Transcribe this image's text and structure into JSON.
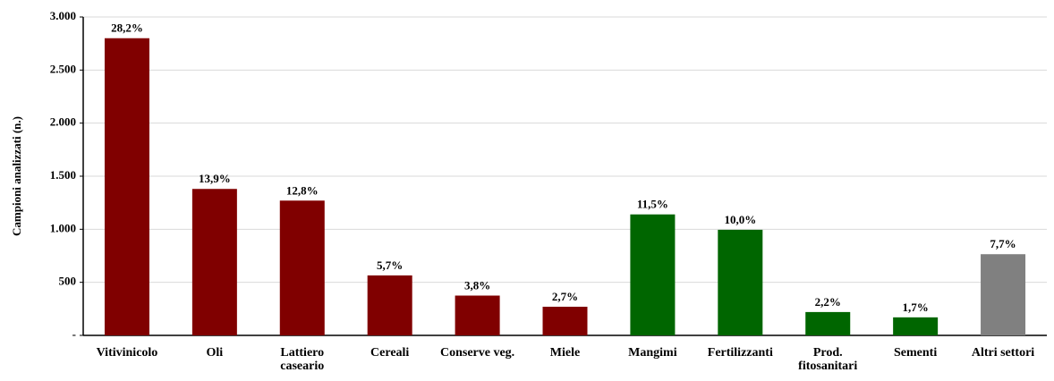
{
  "chart_data": {
    "type": "bar",
    "y_label": "Campioni analizzati (n.)",
    "categories": [
      "Vitivinicolo",
      "Oli",
      "Lattiero caseario",
      "Cereali",
      "Conserve veg.",
      "Miele",
      "Mangimi",
      "Fertilizzanti",
      "Prod. fitosanitari",
      "Sementi",
      "Altri settori"
    ],
    "values": [
      2800,
      1380,
      1270,
      565,
      375,
      270,
      1140,
      995,
      220,
      170,
      765
    ],
    "percent_labels": [
      "28,2%",
      "13,9%",
      "12,8%",
      "5,7%",
      "3,8%",
      "2,7%",
      "11,5%",
      "10,0%",
      "2,2%",
      "1,7%",
      "7,7%"
    ],
    "colors": [
      "#800000",
      "#800000",
      "#800000",
      "#800000",
      "#800000",
      "#800000",
      "#006600",
      "#006600",
      "#006600",
      "#006600",
      "#808080"
    ],
    "ylim": [
      0,
      3000
    ],
    "yticks": [
      {
        "value": 0,
        "label": "-"
      },
      500,
      {
        "value": 1000,
        "label": "1.000"
      },
      {
        "value": 1500,
        "label": "1.500"
      },
      {
        "value": 2000,
        "label": "2.000"
      },
      {
        "value": 2500,
        "label": "2.500"
      },
      {
        "value": 3000,
        "label": "3.000"
      }
    ],
    "grid": true
  }
}
